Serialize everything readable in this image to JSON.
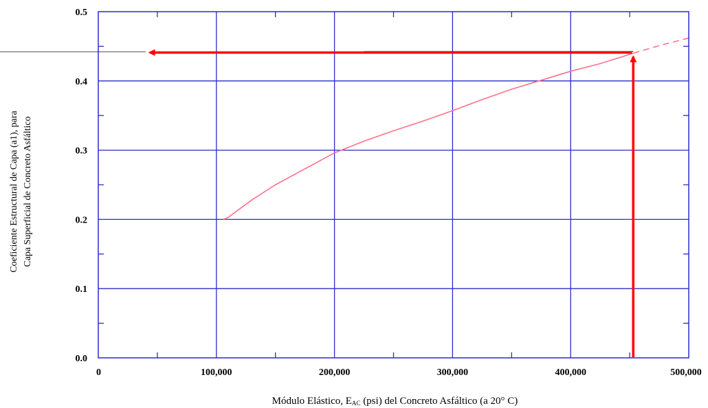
{
  "chart_data": {
    "type": "line",
    "xlabel_parts": {
      "before": "Módulo Elástico, E",
      "subscript": "AC",
      "after": " (psi) del Concreto Asfáltico (a 20° C)"
    },
    "ylabel_lines": [
      "Coeficiente Estructural de Capa (a1), para",
      "Capa Superficial de Concreto Asfáltico"
    ],
    "xlim": [
      0,
      500000
    ],
    "ylim": [
      0,
      0.5
    ],
    "x_ticks": [
      0,
      100000,
      200000,
      300000,
      400000,
      500000
    ],
    "x_tick_labels": [
      "0",
      "100,000",
      "200,000",
      "300,000",
      "400,000",
      "500,000"
    ],
    "y_ticks": [
      0,
      0.1,
      0.2,
      0.3,
      0.4,
      0.5
    ],
    "y_tick_labels": [
      "0.0",
      "0.1",
      "0.2",
      "0.3",
      "0.4",
      "0.5"
    ],
    "grid": true,
    "series": [
      {
        "style": "solid",
        "color": "#ff6f8a",
        "x": [
          106000,
          110000,
          130000,
          150000,
          175000,
          200000,
          225000,
          250000,
          275000,
          300000,
          325000,
          350000,
          375000,
          400000,
          425000,
          453000
        ],
        "y": [
          0.2,
          0.203,
          0.228,
          0.25,
          0.273,
          0.296,
          0.313,
          0.328,
          0.342,
          0.357,
          0.373,
          0.388,
          0.401,
          0.414,
          0.425,
          0.44
        ]
      },
      {
        "style": "dashed",
        "color": "#ff6f8a",
        "x": [
          453000,
          475000,
          500000
        ],
        "y": [
          0.44,
          0.451,
          0.462
        ]
      }
    ],
    "annotation": {
      "x_value": 453000,
      "y_value": 0.441,
      "arrow_color": "#ff0000"
    }
  }
}
